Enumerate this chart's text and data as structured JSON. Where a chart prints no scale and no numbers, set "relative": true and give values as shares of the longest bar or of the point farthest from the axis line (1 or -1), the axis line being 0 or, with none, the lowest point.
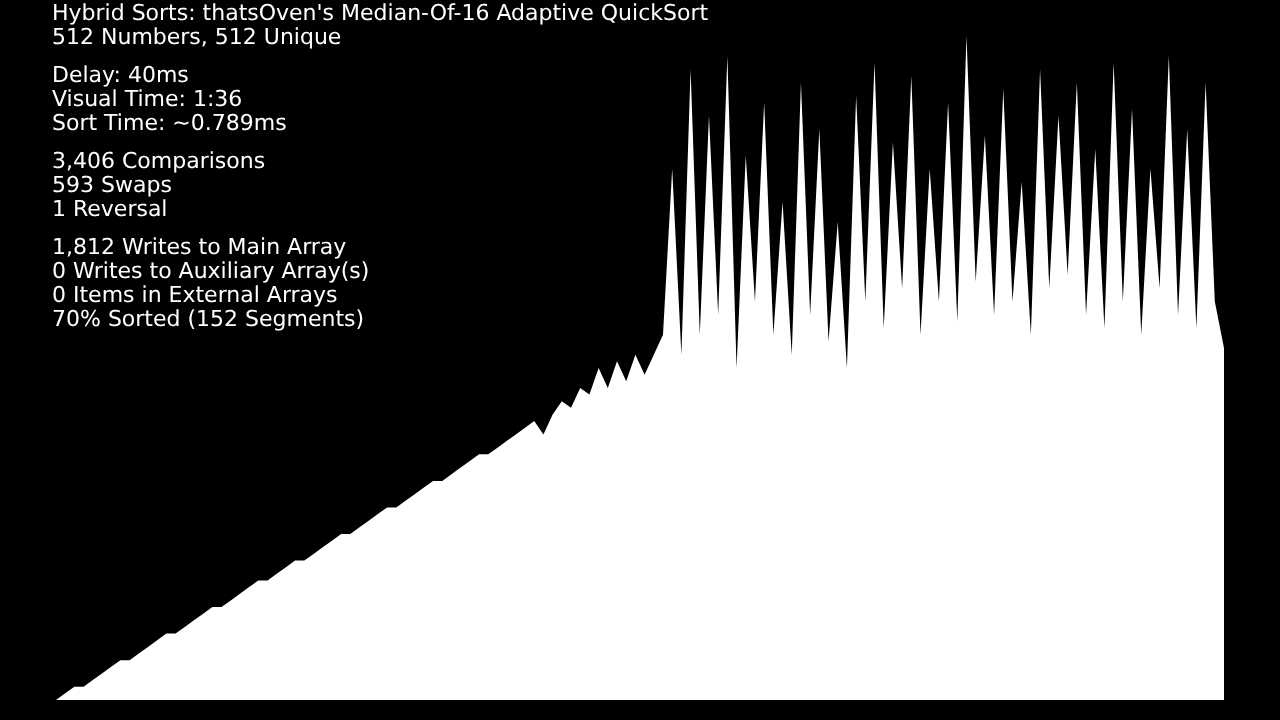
{
  "chart_data": {
    "type": "area",
    "title": "Hybrid Sorts: thatsOven's Median-Of-16 Adaptive QuickSort",
    "subtitle": "512 Numbers, 512 Unique",
    "annotations": [
      "Delay: 40ms",
      "Visual Time: 1:36",
      "Sort Time: ~0.789ms",
      "3,406 Comparisons",
      "593 Swaps",
      "1 Reversal",
      "1,812 Writes to Main Array",
      "0 Writes to Auxiliary Array(s)",
      "0 Items in External Arrays",
      "70% Sorted (152 Segments)"
    ],
    "relative": true,
    "categories": [
      null,
      null,
      null,
      null,
      null,
      null,
      null,
      null,
      null,
      null,
      null,
      null,
      null,
      null,
      null,
      null,
      null,
      null,
      null,
      null,
      null,
      null,
      null,
      null,
      null,
      null,
      null,
      null,
      null,
      null,
      null,
      null,
      null,
      null,
      null,
      null,
      null,
      null,
      null,
      null,
      null,
      null,
      null,
      null,
      null,
      null,
      null,
      null,
      null,
      null,
      null,
      null,
      null,
      null,
      null,
      null,
      null,
      null,
      null,
      null,
      null,
      null,
      null,
      null,
      null,
      null,
      null,
      null,
      null,
      null,
      null,
      null,
      null,
      null,
      null,
      null,
      null,
      null,
      null,
      null,
      null,
      null,
      null,
      null,
      null,
      null,
      null,
      null,
      null,
      null,
      null,
      null,
      null,
      null,
      null,
      null,
      null,
      null,
      null,
      null,
      null,
      null,
      null,
      null,
      null,
      null,
      null,
      null,
      null,
      null,
      null,
      null,
      null,
      null,
      null,
      null,
      null,
      null,
      null,
      null,
      null,
      null,
      null,
      null,
      null,
      null,
      null,
      null
    ],
    "series": [
      {
        "color": "#ffffff",
        "values": [
          0,
          0.01,
          0.02,
          0.02,
          0.03,
          0.04,
          0.05,
          0.06,
          0.06,
          0.07,
          0.08,
          0.09,
          0.1,
          0.1,
          0.11,
          0.12,
          0.13,
          0.14,
          0.14,
          0.15,
          0.16,
          0.17,
          0.18,
          0.18,
          0.19,
          0.2,
          0.21,
          0.21,
          0.22,
          0.23,
          0.24,
          0.25,
          0.25,
          0.26,
          0.27,
          0.28,
          0.29,
          0.29,
          0.3,
          0.31,
          0.32,
          0.33,
          0.33,
          0.34,
          0.35,
          0.36,
          0.37,
          0.37,
          0.38,
          0.39,
          0.4,
          0.41,
          0.42,
          0.4,
          0.43,
          0.45,
          0.44,
          0.47,
          0.46,
          0.5,
          0.47,
          0.51,
          0.48,
          0.52,
          0.49,
          0.52,
          0.55,
          0.8,
          0.52,
          0.95,
          0.55,
          0.88,
          0.58,
          0.97,
          0.5,
          0.82,
          0.6,
          0.9,
          0.55,
          0.75,
          0.52,
          0.93,
          0.58,
          0.86,
          0.54,
          0.72,
          0.5,
          0.91,
          0.6,
          0.96,
          0.56,
          0.84,
          0.62,
          0.94,
          0.55,
          0.8,
          0.6,
          0.9,
          0.57,
          1,
          0.63,
          0.85,
          0.58,
          0.92,
          0.6,
          0.78,
          0.55,
          0.95,
          0.62,
          0.88,
          0.64,
          0.93,
          0.58,
          0.83,
          0.56,
          0.96,
          0.6,
          0.89,
          0.55,
          0.8,
          0.62,
          0.97,
          0.58,
          0.86,
          0.56,
          0.93,
          0.6,
          0.53
        ]
      }
    ]
  }
}
